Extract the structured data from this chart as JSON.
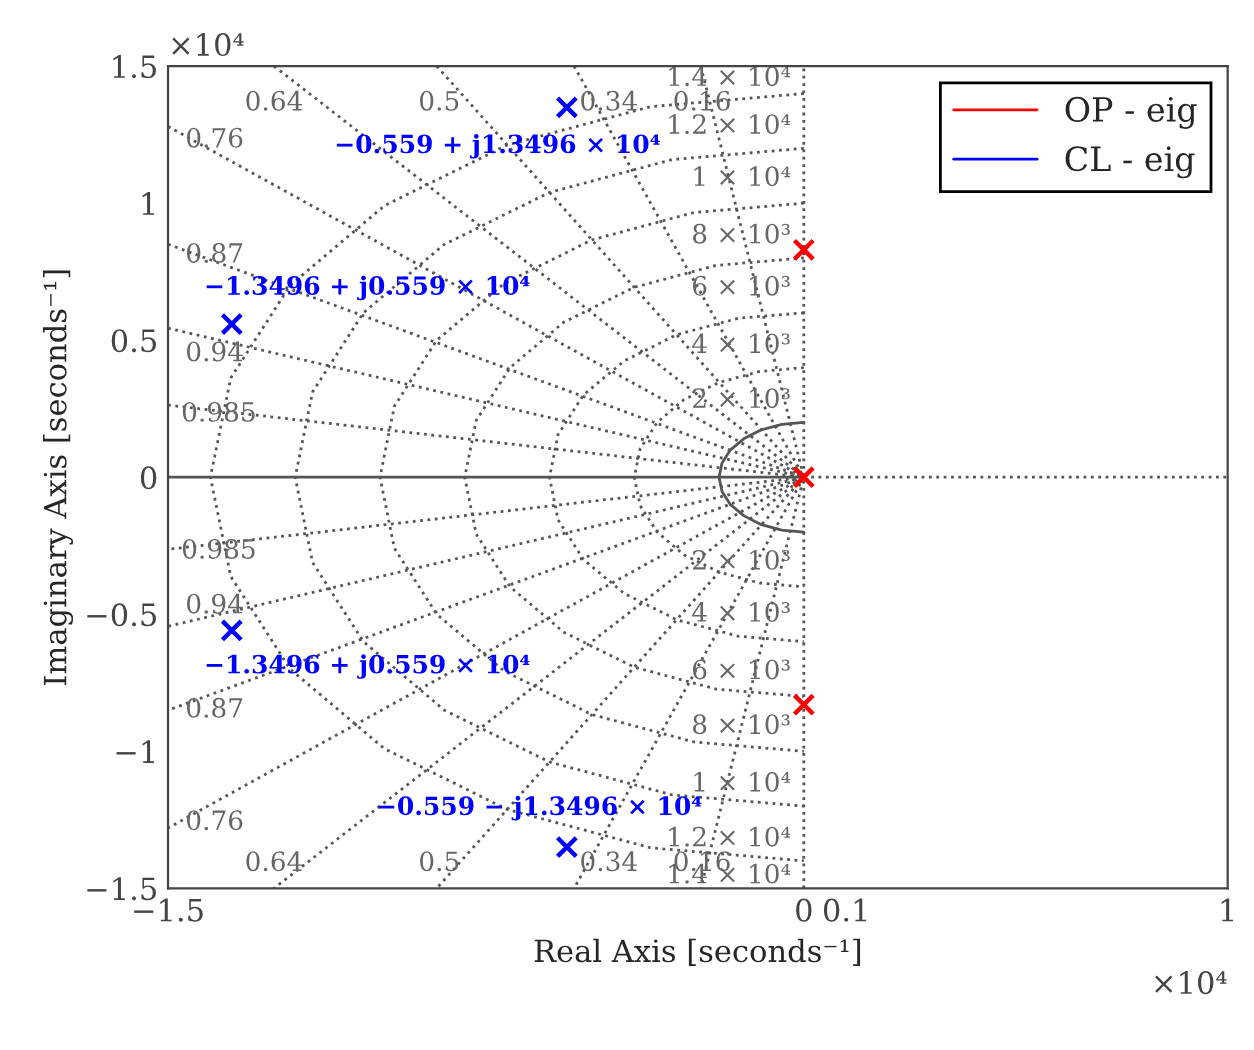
{
  "chart_data": {
    "type": "scatter",
    "xlabel": "Real Axis [seconds⁻¹]",
    "ylabel": "Imaginary Axis [seconds⁻¹]",
    "xlim": [
      -1.5,
      1
    ],
    "ylim": [
      -1.5,
      1.5
    ],
    "xticks": [
      {
        "value": -1.5,
        "label": "−1.5"
      },
      0,
      0.1,
      1
    ],
    "yticks": [
      {
        "value": -1.5,
        "label": "−1.5"
      },
      {
        "value": -1,
        "label": "−1"
      },
      {
        "value": -0.5,
        "label": "−0.5"
      },
      0,
      0.5,
      1,
      1.5
    ],
    "legend": "top right",
    "series": [
      {
        "type": "line",
        "color": "#555555",
        "line_style": "solid",
        "x": [
          -1.5,
          0
        ],
        "values": [
          0,
          0
        ]
      },
      {
        "type": "line",
        "color": "#555555",
        "line_style": "dotted",
        "x": [
          0,
          1
        ],
        "values": [
          0,
          0
        ]
      },
      {
        "type": "line",
        "color": "#555555",
        "line_style": "dotted",
        "x": [
          0,
          0
        ],
        "values": [
          -1.5,
          1.5
        ]
      },
      {
        "type": "line",
        "color": "#555555",
        "line_style": "dotted",
        "x": [
          -0.243,
          0,
          -0.243
        ],
        "values": [
          1.5,
          0,
          -1.5
        ]
      },
      {
        "type": "line",
        "color": "#555555",
        "line_style": "dotted",
        "x": [
          -0.542,
          0,
          -0.542
        ],
        "values": [
          1.5,
          0,
          -1.5
        ]
      },
      {
        "type": "line",
        "color": "#555555",
        "line_style": "dotted",
        "x": [
          -0.866,
          0,
          -0.866
        ],
        "values": [
          1.5,
          0,
          -1.5
        ]
      },
      {
        "type": "line",
        "color": "#555555",
        "line_style": "dotted",
        "x": [
          -1.25,
          0,
          -1.25
        ],
        "values": [
          1.5,
          0,
          -1.5
        ]
      },
      {
        "type": "line",
        "color": "#555555",
        "line_style": "dotted",
        "x": [
          -1.5,
          0,
          -1.5
        ],
        "values": [
          1.28,
          0,
          -1.28
        ]
      },
      {
        "type": "line",
        "color": "#555555",
        "line_style": "dotted",
        "x": [
          -1.5,
          0,
          -1.5
        ],
        "values": [
          0.85,
          0,
          -0.85
        ]
      },
      {
        "type": "line",
        "color": "#555555",
        "line_style": "dotted",
        "x": [
          -1.5,
          0,
          -1.5
        ],
        "values": [
          0.544,
          0,
          -0.544
        ]
      },
      {
        "type": "line",
        "color": "#555555",
        "line_style": "dotted",
        "x": [
          -1.5,
          0,
          -1.5
        ],
        "values": [
          0.263,
          0,
          -0.263
        ]
      },
      {
        "type": "line",
        "color": "#555555",
        "line_style": "solid",
        "x": [
          0,
          -0.052,
          -0.1,
          -0.141,
          -0.173,
          -0.193,
          -0.2,
          -0.193,
          -0.173,
          -0.141,
          -0.1,
          -0.052,
          0
        ],
        "values": [
          0.2,
          0.193,
          0.173,
          0.141,
          0.1,
          0.052,
          0,
          -0.052,
          -0.1,
          -0.141,
          -0.173,
          -0.193,
          -0.2
        ]
      },
      {
        "type": "line",
        "color": "#555555",
        "line_style": "dotted",
        "x": [
          0,
          -0.104,
          -0.2,
          -0.283,
          -0.346,
          -0.386,
          -0.4,
          -0.386,
          -0.346,
          -0.283,
          -0.2,
          -0.104,
          0
        ],
        "values": [
          0.4,
          0.386,
          0.346,
          0.283,
          0.2,
          0.104,
          0,
          -0.104,
          -0.2,
          -0.283,
          -0.346,
          -0.386,
          -0.4
        ]
      },
      {
        "type": "line",
        "color": "#555555",
        "line_style": "dotted",
        "x": [
          0,
          -0.155,
          -0.3,
          -0.424,
          -0.52,
          -0.58,
          -0.6,
          -0.58,
          -0.52,
          -0.424,
          -0.3,
          -0.155,
          0
        ],
        "values": [
          0.6,
          0.58,
          0.52,
          0.424,
          0.3,
          0.155,
          0,
          -0.155,
          -0.3,
          -0.424,
          -0.52,
          -0.58,
          -0.6
        ]
      },
      {
        "type": "line",
        "color": "#555555",
        "line_style": "dotted",
        "x": [
          0,
          -0.207,
          -0.4,
          -0.566,
          -0.693,
          -0.773,
          -0.8,
          -0.773,
          -0.693,
          -0.566,
          -0.4,
          -0.207,
          0
        ],
        "values": [
          0.8,
          0.773,
          0.693,
          0.566,
          0.4,
          0.207,
          0,
          -0.207,
          -0.4,
          -0.566,
          -0.693,
          -0.773,
          -0.8
        ]
      },
      {
        "type": "line",
        "color": "#555555",
        "line_style": "dotted",
        "x": [
          0,
          -0.259,
          -0.5,
          -0.707,
          -0.866,
          -0.966,
          -1,
          -0.966,
          -0.866,
          -0.707,
          -0.5,
          -0.259,
          0
        ],
        "values": [
          1,
          0.966,
          0.866,
          0.707,
          0.5,
          0.259,
          0,
          -0.259,
          -0.5,
          -0.707,
          -0.866,
          -0.966,
          -1
        ]
      },
      {
        "type": "line",
        "color": "#555555",
        "line_style": "dotted",
        "x": [
          0,
          -0.311,
          -0.6,
          -0.849,
          -1.039,
          -1.159,
          -1.2,
          -1.159,
          -1.039,
          -0.849,
          -0.6,
          -0.311,
          0
        ],
        "values": [
          1.2,
          1.159,
          1.039,
          0.849,
          0.6,
          0.311,
          0,
          -0.311,
          -0.6,
          -0.849,
          -1.039,
          -1.159,
          -1.2
        ]
      },
      {
        "type": "line",
        "color": "#555555",
        "line_style": "dotted",
        "x": [
          0,
          -0.362,
          -0.7,
          -0.99,
          -1.212,
          -1.352,
          -1.4,
          -1.352,
          -1.212,
          -0.99,
          -0.7,
          -0.362,
          0
        ],
        "values": [
          1.4,
          1.352,
          1.212,
          0.99,
          0.7,
          0.362,
          0,
          -0.362,
          -0.7,
          -0.99,
          -1.212,
          -1.352,
          -1.4
        ]
      },
      {
        "type": "scatter",
        "name": "OP - eig",
        "color": "#ff0000",
        "marker": "cross",
        "x": [
          0,
          0,
          0
        ],
        "values": [
          0.83,
          0,
          -0.83
        ]
      },
      {
        "type": "scatter",
        "name": "CL - eig",
        "color": "#0000ff",
        "marker": "cross",
        "x": [
          -0.559,
          -1.3496,
          -1.3496,
          -0.559
        ],
        "values": [
          1.3496,
          0.559,
          -0.559,
          -1.3496
        ],
        "value_labels": [
          "−0.559 + j1.3496 × 10⁴",
          "−1.3496 + j0.559 × 10⁴",
          "−1.3496 + j0.559 × 10⁴",
          "−0.559 − j1.3496 × 10⁴"
        ]
      }
    ],
    "annotations": [
      "×10⁴",
      "×10⁴",
      "0.64",
      "0.5",
      "0.34",
      "0.16",
      "0.76",
      "0.87",
      "0.94",
      "0.985",
      "0.985",
      "0.94",
      "0.87",
      "0.76",
      "0.64",
      "0.5",
      "0.34",
      "0.16",
      "1.4 × 10⁴",
      "1.2 × 10⁴",
      "1 × 10⁴",
      "8 × 10³",
      "6 × 10³",
      "4 × 10³",
      "2 × 10³",
      "2 × 10³",
      "4 × 10³",
      "6 × 10³",
      "8 × 10³",
      "1 × 10⁴",
      "1.2 × 10⁴",
      "1.4 × 10⁴"
    ]
  }
}
